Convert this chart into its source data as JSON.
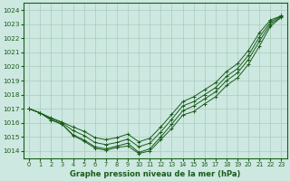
{
  "xlabel": "Graphe pression niveau de la mer (hPa)",
  "xlim": [
    -0.5,
    23.5
  ],
  "ylim": [
    1013.5,
    1024.5
  ],
  "yticks": [
    1014,
    1015,
    1016,
    1017,
    1018,
    1019,
    1020,
    1021,
    1022,
    1023,
    1024
  ],
  "xticks": [
    0,
    1,
    2,
    3,
    4,
    5,
    6,
    7,
    8,
    9,
    10,
    11,
    12,
    13,
    14,
    15,
    16,
    17,
    18,
    19,
    20,
    21,
    22,
    23
  ],
  "bg_color": "#cce8e0",
  "grid_color": "#aaccbb",
  "line_color": "#1a5c1a",
  "line1": [
    1017.0,
    1016.7,
    1016.2,
    1015.9,
    1015.1,
    1014.7,
    1014.2,
    1014.05,
    1014.25,
    1014.35,
    1013.82,
    1014.0,
    1014.8,
    1015.6,
    1016.55,
    1016.8,
    1017.35,
    1017.85,
    1018.65,
    1019.2,
    1020.15,
    1021.45,
    1022.85,
    1023.5
  ],
  "line2": [
    1017.0,
    1016.7,
    1016.2,
    1015.9,
    1015.15,
    1014.78,
    1014.3,
    1014.15,
    1014.35,
    1014.55,
    1013.9,
    1014.15,
    1015.0,
    1015.9,
    1016.85,
    1017.2,
    1017.7,
    1018.2,
    1019.0,
    1019.55,
    1020.5,
    1021.8,
    1023.0,
    1023.55
  ],
  "line3": [
    1017.0,
    1016.7,
    1016.3,
    1016.0,
    1015.45,
    1015.1,
    1014.6,
    1014.45,
    1014.6,
    1014.85,
    1014.3,
    1014.55,
    1015.35,
    1016.25,
    1017.2,
    1017.5,
    1018.0,
    1018.5,
    1019.3,
    1019.85,
    1020.8,
    1022.1,
    1023.15,
    1023.6
  ],
  "line4": [
    1017.0,
    1016.7,
    1016.35,
    1016.05,
    1015.7,
    1015.4,
    1014.95,
    1014.8,
    1014.95,
    1015.2,
    1014.65,
    1014.9,
    1015.7,
    1016.6,
    1017.5,
    1017.85,
    1018.35,
    1018.85,
    1019.65,
    1020.2,
    1021.15,
    1022.4,
    1023.3,
    1023.6
  ]
}
